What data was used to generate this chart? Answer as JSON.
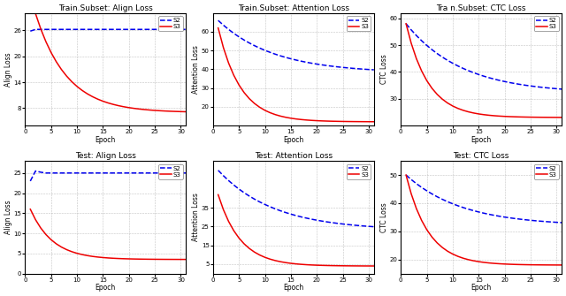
{
  "titles": [
    "Train.Subset: Align Loss",
    "Train.Subset: Attention Loss",
    "Tra n.Subset: CTC Loss",
    "Test: Align Loss",
    "Test: Attention Loss",
    "Test: CTC Loss"
  ],
  "ylabels": [
    "Align Loss",
    "Attention Loss",
    "CTC Loss",
    "Align Loss",
    "Attention Loss",
    "CTC Loss"
  ],
  "xlabel": "Epoch",
  "s2_color": "#0000ee",
  "s3_color": "#ee0000",
  "background_color": "#ffffff",
  "grid_color": "#aaaaaa"
}
